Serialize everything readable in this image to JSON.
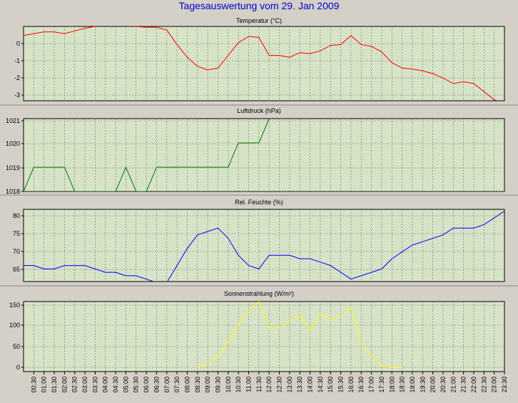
{
  "title": "Tagesauswertung vom 29. Jan 2009",
  "colors": {
    "background": "#d4d0c8",
    "plot_background": "#d7e3c7",
    "title": "#0000cc",
    "grid": "#6e6e6e"
  },
  "chart_data": [
    {
      "type": "line",
      "title": "Temperatur (°C)",
      "color": "#ff0000",
      "yticks": [
        "0",
        "-1",
        "-2",
        "-3"
      ],
      "ylim": [
        -3.3,
        0.8
      ],
      "grid": true,
      "x": [
        0,
        0.5,
        1,
        1.5,
        2,
        2.5,
        3,
        3.5,
        4,
        4.5,
        5,
        5.5,
        6,
        6.5,
        7,
        7.5,
        8,
        8.5,
        9,
        9.5,
        10,
        10.5,
        11,
        11.5,
        12,
        12.5,
        13,
        13.5,
        14,
        14.5,
        15,
        15.5,
        16,
        16.5,
        17,
        17.5,
        18,
        18.5,
        19,
        19.5,
        20,
        20.5,
        21,
        21.5,
        22,
        22.5,
        23,
        23.5
      ],
      "values": [
        0.3,
        0.4,
        0.5,
        0.5,
        0.4,
        0.55,
        0.7,
        0.8,
        0.85,
        0.85,
        0.85,
        0.8,
        0.75,
        0.75,
        0.6,
        -0.2,
        -0.9,
        -1.4,
        -1.6,
        -1.5,
        -0.8,
        -0.1,
        0.25,
        0.2,
        -0.8,
        -0.8,
        -0.9,
        -0.65,
        -0.7,
        -0.55,
        -0.25,
        -0.2,
        0.3,
        -0.2,
        -0.3,
        -0.6,
        -1.2,
        -1.5,
        -1.55,
        -1.65,
        -1.8,
        -2.05,
        -2.35,
        -2.25,
        -2.35,
        -2.8,
        -3.25,
        -3.4
      ]
    },
    {
      "type": "line",
      "title": "Luftdruck (hPa)",
      "color": "#007700",
      "yticks": [
        "1021",
        "1020",
        "1019",
        "1018"
      ],
      "ylim": [
        1018,
        1021
      ],
      "grid": true,
      "x": [
        0,
        0.5,
        1,
        1.5,
        2,
        2.5,
        3,
        3.5,
        4,
        4.5,
        5,
        5.5,
        6,
        6.5,
        7,
        7.5,
        8,
        8.5,
        9,
        9.5,
        10,
        10.5,
        11,
        11.5,
        12
      ],
      "values": [
        1018,
        1019,
        1019,
        1019,
        1019,
        1018,
        1018,
        1018,
        1018,
        1018,
        1019,
        1018,
        1018,
        1019,
        1019,
        1019,
        1019,
        1019,
        1019,
        1019,
        1019,
        1020,
        1020,
        1020,
        1021
      ]
    },
    {
      "type": "line",
      "title": "Rel. Feuchte (%)",
      "color": "#0000ff",
      "yticks": [
        "80",
        "75",
        "70",
        "65"
      ],
      "ylim": [
        61.3,
        82.5
      ],
      "grid": true,
      "x": [
        0,
        0.5,
        1,
        1.5,
        2,
        2.5,
        3,
        3.5,
        4,
        4.5,
        5,
        5.5,
        6,
        6.5,
        7,
        7.5,
        8,
        8.5,
        9,
        9.5,
        10,
        10.5,
        11,
        11.5,
        12,
        12.5,
        13,
        13.5,
        14,
        14.5,
        15,
        15.5,
        16,
        16.5,
        17,
        17.5,
        18,
        18.5,
        19,
        19.5,
        20,
        20.5,
        21,
        21.5,
        22,
        22.5,
        23,
        23.5
      ],
      "values": [
        66,
        66,
        65,
        65,
        66,
        66,
        66,
        65,
        64,
        64,
        63,
        63,
        62,
        61,
        61,
        66,
        71,
        75,
        76,
        77,
        74,
        69,
        66,
        65,
        69,
        69,
        69,
        68,
        68,
        67,
        66,
        64,
        62,
        63,
        64,
        65,
        68,
        70,
        72,
        73,
        74,
        75,
        77,
        77,
        77,
        78,
        80,
        82
      ]
    },
    {
      "type": "line",
      "title": "Sonnenstrahlung (W/m²)",
      "color": "#ffff00",
      "yticks": [
        "150",
        "100",
        "50",
        "0"
      ],
      "ylim": [
        -10,
        155
      ],
      "grid": true,
      "x": [
        8.5,
        9,
        9.5,
        10,
        10.5,
        11,
        11.5,
        12,
        12.5,
        13,
        13.5,
        14,
        14.5,
        15,
        15.5,
        16,
        16.5,
        17,
        17.5,
        18,
        18.5
      ],
      "values": [
        0,
        8,
        25,
        60,
        100,
        135,
        155,
        93,
        93,
        110,
        122,
        88,
        125,
        113,
        122,
        140,
        55,
        25,
        5,
        0,
        0
      ]
    }
  ],
  "x_tick_labels": [
    "00:30",
    "01:00",
    "01:30",
    "02:00",
    "02:30",
    "03:00",
    "03:30",
    "04:00",
    "04:30",
    "05:00",
    "05:30",
    "06:00",
    "06:30",
    "07:00",
    "07:30",
    "08:00",
    "08:30",
    "09:00",
    "09:30",
    "10:00",
    "10:30",
    "11:00",
    "11:30",
    "12:00",
    "12:30",
    "13:00",
    "13:30",
    "14:00",
    "14:30",
    "15:00",
    "15:30",
    "16:00",
    "16:30",
    "17:00",
    "17:30",
    "18:00",
    "18:30",
    "19:00",
    "19:30",
    "20:00",
    "20:30",
    "21:00",
    "21:30",
    "22:00",
    "22:30",
    "23:00",
    "23:30"
  ]
}
